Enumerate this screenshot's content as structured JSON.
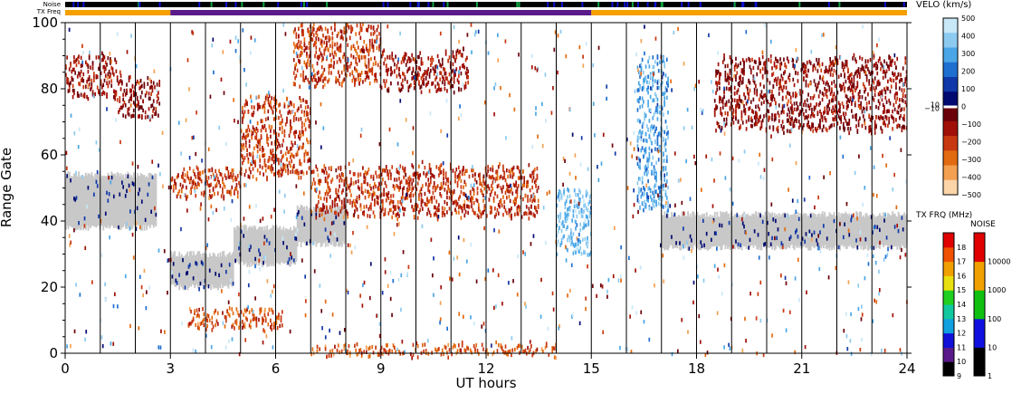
{
  "chart_data": {
    "type": "heatmap",
    "top_strips": {
      "noise_label": "Noise",
      "txfreq_label": "TX Freq",
      "txfreq_segments": [
        {
          "start": 0,
          "end": 3,
          "color": "#f5a000"
        },
        {
          "start": 3,
          "end": 15,
          "color": "#5a1a8a"
        },
        {
          "start": 15,
          "end": 24,
          "color": "#f5a000"
        }
      ]
    },
    "xlabel": "UT hours",
    "ylabel": "Range Gate",
    "xlim": [
      0,
      24
    ],
    "ylim": [
      0,
      100
    ],
    "x_ticks": [
      "0",
      "3",
      "6",
      "9",
      "12",
      "15",
      "18",
      "21",
      "24"
    ],
    "y_ticks": [
      "0",
      "20",
      "40",
      "60",
      "80",
      "100"
    ],
    "vertical_lines_hours": [
      1,
      2,
      3,
      4,
      5,
      6,
      7,
      8,
      9,
      10,
      11,
      12,
      13,
      14,
      15,
      16,
      17,
      18,
      19,
      20,
      21,
      22,
      23
    ],
    "echo_bands": [
      {
        "x_start": 0.0,
        "x_end": 1.5,
        "gate_low": 78,
        "gate_high": 91,
        "velocity": -150
      },
      {
        "x_start": 1.5,
        "x_end": 2.7,
        "gate_low": 72,
        "gate_high": 84,
        "velocity": -120
      },
      {
        "x_start": 0.0,
        "x_end": 2.6,
        "gate_low": 38,
        "gate_high": 54,
        "velocity": 0
      },
      {
        "x_start": 3.0,
        "x_end": 4.8,
        "gate_low": 20,
        "gate_high": 30,
        "velocity": 0
      },
      {
        "x_start": 4.8,
        "x_end": 6.6,
        "gate_low": 27,
        "gate_high": 38,
        "velocity": 0
      },
      {
        "x_start": 6.6,
        "x_end": 8.0,
        "gate_low": 33,
        "gate_high": 44,
        "velocity": 0
      },
      {
        "x_start": 3.0,
        "x_end": 5.0,
        "gate_low": 48,
        "gate_high": 56,
        "velocity": -250
      },
      {
        "x_start": 5.0,
        "x_end": 7.0,
        "gate_low": 54,
        "gate_high": 78,
        "velocity": -250
      },
      {
        "x_start": 6.5,
        "x_end": 9.0,
        "gate_low": 82,
        "gate_high": 100,
        "velocity": -250
      },
      {
        "x_start": 7.0,
        "x_end": 13.5,
        "gate_low": 42,
        "gate_high": 57,
        "velocity": -230
      },
      {
        "x_start": 9.0,
        "x_end": 11.5,
        "gate_low": 80,
        "gate_high": 92,
        "velocity": -150
      },
      {
        "x_start": 3.5,
        "x_end": 6.2,
        "gate_low": 8,
        "gate_high": 14,
        "velocity": -300
      },
      {
        "x_start": 7.0,
        "x_end": 14.0,
        "gate_low": 0,
        "gate_high": 3,
        "velocity": -300
      },
      {
        "x_start": 14.0,
        "x_end": 15.0,
        "gate_low": 30,
        "gate_high": 50,
        "velocity": 200
      },
      {
        "x_start": 16.3,
        "x_end": 17.2,
        "gate_low": 44,
        "gate_high": 90,
        "velocity": 150
      },
      {
        "x_start": 17.0,
        "x_end": 24.0,
        "gate_low": 32,
        "gate_high": 42,
        "velocity": 0
      },
      {
        "x_start": 18.5,
        "x_end": 24.0,
        "gate_low": 68,
        "gate_high": 90,
        "velocity": -120
      }
    ],
    "velocity_colorbar": {
      "title": "VELO (km/s)",
      "tick_labels": [
        "500",
        "400",
        "300",
        "200",
        "100",
        "10",
        "0",
        "−10",
        "−100",
        "−200",
        "−300",
        "−400",
        "−500"
      ],
      "colors": [
        "#c8e8f8",
        "#8ccaf0",
        "#4aa6e6",
        "#1f6fd0",
        "#1038a8",
        "#000a70",
        "#ffffff",
        "#6a0008",
        "#a01008",
        "#c83810",
        "#e26a10",
        "#f3a050",
        "#fbd4a8"
      ]
    },
    "txfrq_colorbar": {
      "title": "TX FRQ (MHz)",
      "tick_labels": [
        "9",
        "10",
        "11",
        "12",
        "13",
        "14",
        "15",
        "16",
        "17",
        "18"
      ],
      "colors": [
        "#000000",
        "#5a1a8a",
        "#1010d8",
        "#10a0e0",
        "#10c8a0",
        "#20d020",
        "#e8e010",
        "#f0a000",
        "#f05000",
        "#e00000"
      ]
    },
    "noise_colorbar": {
      "title": "NOISE",
      "tick_labels": [
        "1",
        "10",
        "100",
        "1000",
        "10000"
      ],
      "colors": [
        "#000000",
        "#1010e0",
        "#10c010",
        "#f0a000",
        "#e00000"
      ]
    }
  }
}
